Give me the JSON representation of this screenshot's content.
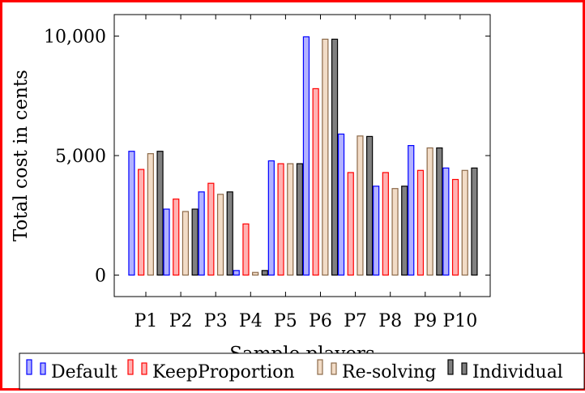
{
  "chart_data": {
    "type": "bar",
    "title": "",
    "xlabel": "Sample players",
    "ylabel": "Total cost in cents",
    "ylim": [
      -900,
      10900
    ],
    "yticks": [
      0,
      5000,
      10000
    ],
    "ytick_labels": [
      "0",
      "5,000",
      "10,000"
    ],
    "grid": false,
    "legend_position": "bottom",
    "categories": [
      "P1",
      "P2",
      "P3",
      "P4",
      "P5",
      "P6",
      "P7",
      "P8",
      "P9",
      "P10"
    ],
    "series": [
      {
        "name": "Default",
        "color": "#0000ff",
        "fill": "#b2b2ff",
        "values": [
          5180,
          2760,
          3480,
          190,
          4780,
          9970,
          5900,
          3720,
          5420,
          4480
        ]
      },
      {
        "name": "KeepProportion",
        "color": "#ff0000",
        "fill": "#ffb2b2",
        "values": [
          4420,
          3180,
          3840,
          2140,
          4660,
          7800,
          4290,
          4290,
          4380,
          4000
        ]
      },
      {
        "name": "Re-solving",
        "color": "#8c6a4a",
        "fill": "#f2dcc7",
        "values": [
          5080,
          2660,
          3380,
          110,
          4660,
          9870,
          5820,
          3620,
          5320,
          4380
        ]
      },
      {
        "name": "Individual",
        "color": "#000000",
        "fill": "#808080",
        "values": [
          5180,
          2760,
          3480,
          190,
          4660,
          9870,
          5800,
          3720,
          5320,
          4480
        ]
      }
    ]
  }
}
